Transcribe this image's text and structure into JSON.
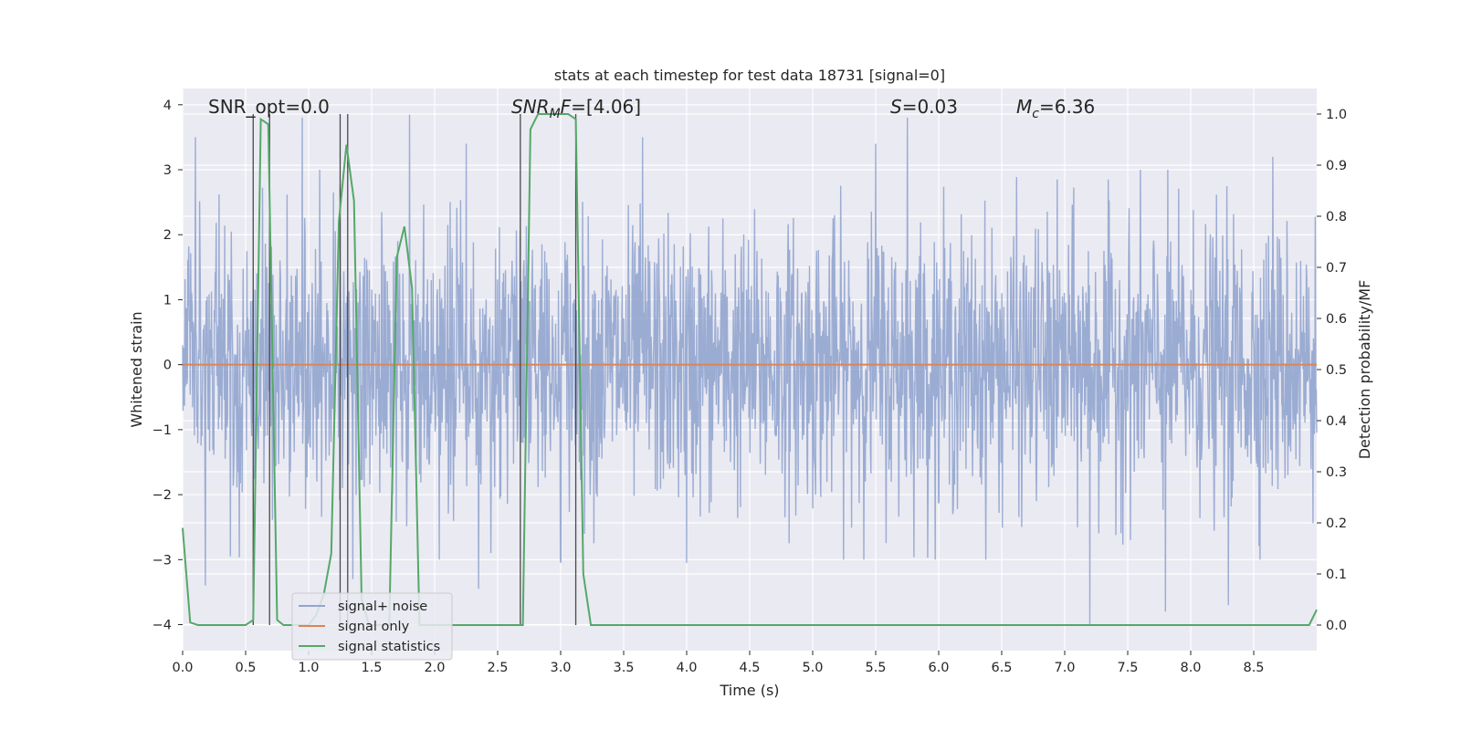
{
  "chart_data": {
    "type": "line",
    "title": "stats at each timestep for test data 18731 [signal=0]",
    "xlabel": "Time (s)",
    "ylabel": "Whitened strain",
    "y2label": "Detection probability/MF",
    "xlim": [
      0.0,
      9.0
    ],
    "ylim": [
      -4.4,
      4.25
    ],
    "y2lim": [
      -0.05,
      1.05
    ],
    "xticks": [
      "0.0",
      "0.5",
      "1.0",
      "1.5",
      "2.0",
      "2.5",
      "3.0",
      "3.5",
      "4.0",
      "4.5",
      "5.0",
      "5.5",
      "6.0",
      "6.5",
      "7.0",
      "7.5",
      "8.0",
      "8.5"
    ],
    "yticks": [
      "4",
      "3",
      "2",
      "1",
      "0",
      "−1",
      "−2",
      "−3",
      "−4"
    ],
    "y2ticks": [
      "1.0",
      "0.9",
      "0.8",
      "0.7",
      "0.6",
      "0.5",
      "0.4",
      "0.3",
      "0.2",
      "0.1",
      "0.0"
    ],
    "grid": true,
    "legend_position": "lower-left",
    "annotations": {
      "snr_opt": "SNR_opt=0.0",
      "snr_mf_sym": "SNR",
      "snr_mf_sub": "M",
      "snr_mf_sym2": "F",
      "snr_mf_val": "=[4.06]",
      "s_sym": "S",
      "s_val": "=0.03",
      "mc_sym": "M",
      "mc_sub": "c",
      "mc_val": "=6.36"
    },
    "series": [
      {
        "name": "signal+ noise",
        "color": "#92a5cf",
        "style": "dense noise, values mostly within -2.5..2.5 with spikes to about ±3.5-4",
        "extremes": [
          {
            "x": 0.1,
            "y": 3.5
          },
          {
            "x": 0.95,
            "y": 3.8
          },
          {
            "x": 1.8,
            "y": 3.85
          },
          {
            "x": 2.25,
            "y": 3.4
          },
          {
            "x": 3.65,
            "y": 3.5
          },
          {
            "x": 5.5,
            "y": 3.4
          },
          {
            "x": 5.75,
            "y": 3.8
          },
          {
            "x": 7.2,
            "y": -4.0
          },
          {
            "x": 7.8,
            "y": -3.8
          },
          {
            "x": 8.65,
            "y": 3.2
          },
          {
            "x": 0.18,
            "y": -3.4
          },
          {
            "x": 1.35,
            "y": -3.3
          },
          {
            "x": 2.35,
            "y": -3.45
          },
          {
            "x": 3.0,
            "y": -3.05
          },
          {
            "x": 4.0,
            "y": -3.05
          },
          {
            "x": 8.3,
            "y": -3.7
          }
        ]
      },
      {
        "name": "signal only",
        "color": "#dd8452",
        "x": [
          0.0,
          9.0
        ],
        "y": [
          0.0,
          0.0
        ]
      },
      {
        "name": "signal statistics",
        "color": "#55a868",
        "axis": "right",
        "x": [
          0.0,
          0.06,
          0.12,
          0.5,
          0.56,
          0.62,
          0.68,
          0.75,
          0.8,
          1.0,
          1.06,
          1.12,
          1.18,
          1.24,
          1.3,
          1.36,
          1.42,
          1.48,
          1.54,
          1.64,
          1.7,
          1.76,
          1.82,
          1.88,
          1.94,
          2.0,
          2.6,
          2.7,
          2.76,
          2.82,
          2.88,
          3.0,
          3.06,
          3.12,
          3.18,
          3.24,
          8.94,
          9.0
        ],
        "y": [
          0.19,
          0.005,
          0.0,
          0.0,
          0.01,
          0.99,
          0.98,
          0.01,
          0.0,
          0.0,
          0.02,
          0.06,
          0.14,
          0.79,
          0.94,
          0.83,
          0.05,
          0.0,
          0.0,
          0.0,
          0.72,
          0.78,
          0.66,
          0.0,
          0.0,
          0.0,
          0.0,
          0.0,
          0.97,
          1.0,
          1.0,
          1.0,
          1.0,
          0.99,
          0.1,
          0.0,
          0.0,
          0.03
        ]
      }
    ],
    "vlines": [
      {
        "x": 0.56,
        "ymin": 0.0,
        "ymax": 1.0
      },
      {
        "x": 0.69,
        "ymin": 0.0,
        "ymax": 1.0
      },
      {
        "x": 1.25,
        "ymin": 0.0,
        "ymax": 1.0
      },
      {
        "x": 1.31,
        "ymin": 0.0,
        "ymax": 1.0
      },
      {
        "x": 2.68,
        "ymin": 0.0,
        "ymax": 1.0
      },
      {
        "x": 3.12,
        "ymin": 0.0,
        "ymax": 1.0
      }
    ]
  }
}
